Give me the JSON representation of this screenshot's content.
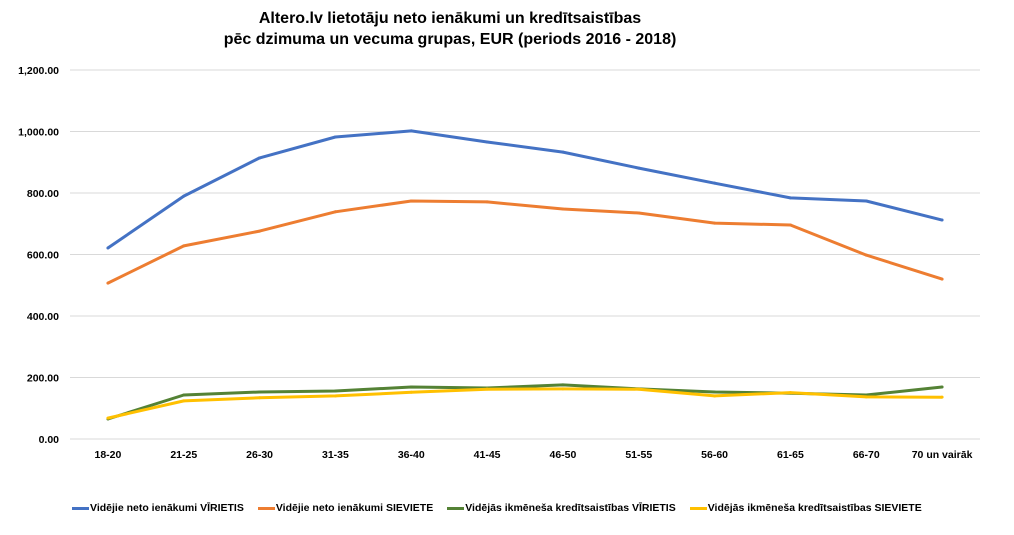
{
  "chart_data": {
    "type": "line",
    "title": [
      "Altero.lv lietotāju neto ienākumi un kredītsaistības",
      "pēc dzimuma un vecuma grupas, EUR (periods 2016 - 2018)"
    ],
    "xlabel": "",
    "ylabel": "",
    "ylim": [
      0,
      1200
    ],
    "yticks": [
      0,
      200,
      400,
      600,
      800,
      1000,
      1200
    ],
    "ytick_labels": [
      "0.00",
      "200.00",
      "400.00",
      "600.00",
      "800.00",
      "1,000.00",
      "1,200.00"
    ],
    "grid": true,
    "legend_position": "bottom",
    "categories": [
      "18-20",
      "21-25",
      "26-30",
      "31-35",
      "36-40",
      "41-45",
      "46-50",
      "51-55",
      "56-60",
      "61-65",
      "66-70",
      "70 un vairāk"
    ],
    "series": [
      {
        "name": "Vidējie neto ienākumi VĪRIETIS",
        "color": "#4472C4",
        "values": [
          621,
          790,
          914,
          982,
          1002,
          966,
          933,
          881,
          832,
          784,
          774,
          712
        ]
      },
      {
        "name": "Vidējie neto ienākumi SIEVIETE",
        "color": "#ED7D31",
        "values": [
          507,
          628,
          676,
          739,
          774,
          771,
          748,
          735,
          702,
          696,
          598,
          520
        ]
      },
      {
        "name": "Vidējās ikmēneša kredītsaistības VĪRIETIS",
        "color": "#548235",
        "values": [
          65,
          143,
          153,
          156,
          169,
          166,
          176,
          163,
          153,
          149,
          143,
          169
        ]
      },
      {
        "name": "Vidējās ikmēneša kredītsaistības SIEVIETE",
        "color": "#FFC000",
        "values": [
          68,
          124,
          134,
          140,
          152,
          162,
          163,
          162,
          140,
          151,
          137,
          136
        ]
      }
    ]
  }
}
